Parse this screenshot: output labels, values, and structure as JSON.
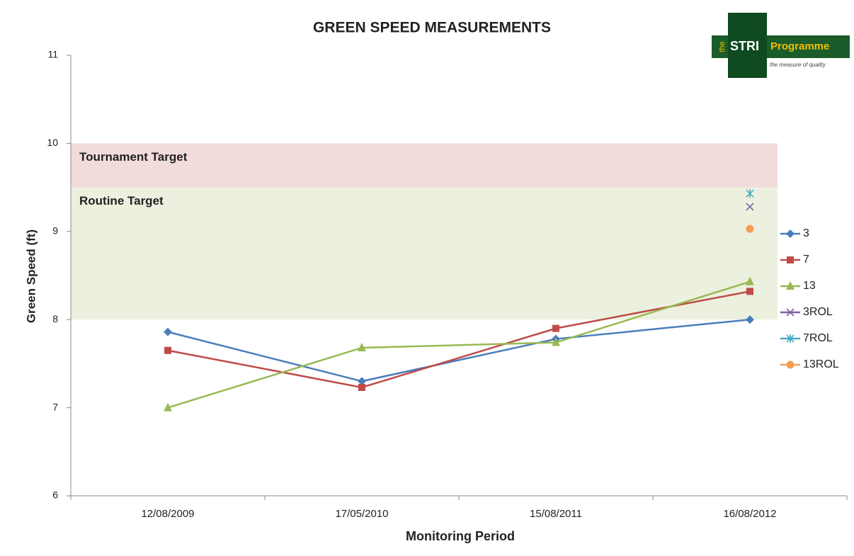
{
  "chart_data": {
    "type": "line",
    "title": "GREEN SPEED MEASUREMENTS",
    "x_label": "Monitoring Period",
    "y_label": "Green Speed (ft)",
    "categories": [
      "12/08/2009",
      "17/05/2010",
      "15/08/2011",
      "16/08/2012"
    ],
    "series": [
      {
        "name": "3",
        "color": "#4a7ebb",
        "marker": "diamond",
        "values": [
          7.86,
          7.3,
          7.78,
          8.0
        ]
      },
      {
        "name": "7",
        "color": "#be4b48",
        "marker": "square",
        "values": [
          7.65,
          7.23,
          7.9,
          8.32
        ]
      },
      {
        "name": "13",
        "color": "#98b954",
        "marker": "triangle",
        "values": [
          7.0,
          7.68,
          7.74,
          8.43
        ]
      },
      {
        "name": "3ROL",
        "color": "#7d60a0",
        "marker": "x",
        "values": [
          null,
          null,
          null,
          9.28
        ]
      },
      {
        "name": "7ROL",
        "color": "#46aac5",
        "marker": "star",
        "values": [
          null,
          null,
          null,
          9.43
        ]
      },
      {
        "name": "13ROL",
        "color": "#f59d56",
        "marker": "circle",
        "values": [
          null,
          null,
          null,
          9.03
        ]
      }
    ],
    "bands": [
      {
        "label": "Tournament Target",
        "range": [
          9.5,
          10
        ],
        "color": "#f2dcdb"
      },
      {
        "label": "Routine Target",
        "range": [
          8,
          9.5
        ],
        "color": "#ebf1de"
      }
    ],
    "ylim": [
      6,
      11
    ],
    "yticks": [
      6,
      7,
      8,
      9,
      10,
      11
    ],
    "grid": false,
    "legend": "right"
  },
  "logo": {
    "prefix": "the",
    "name": "STRI",
    "suffix": "Programme",
    "tagline": "the measure of quality"
  }
}
